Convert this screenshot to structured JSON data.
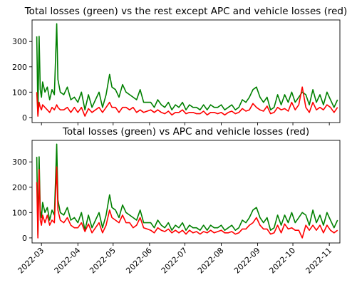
{
  "chart_data": [
    {
      "type": "line",
      "title": "Total losses (green) vs the rest except APC and vehicle losses (red)",
      "xlabel": "",
      "ylabel": "",
      "xlim": [
        "2022-02-21",
        "2022-11-10"
      ],
      "ylim": [
        -20,
        385
      ],
      "yticks": [
        0,
        100,
        200,
        300
      ],
      "grid": false,
      "series": [
        {
          "color": "#008000",
          "x": [
            "2022-02-25",
            "2022-02-26",
            "2022-02-27",
            "2022-02-28",
            "2022-03-01",
            "2022-03-02",
            "2022-03-04",
            "2022-03-06",
            "2022-03-08",
            "2022-03-10",
            "2022-03-12",
            "2022-03-14",
            "2022-03-15",
            "2022-03-17",
            "2022-03-20",
            "2022-03-23",
            "2022-03-26",
            "2022-03-29",
            "2022-04-01",
            "2022-04-04",
            "2022-04-07",
            "2022-04-10",
            "2022-04-13",
            "2022-04-16",
            "2022-04-19",
            "2022-04-22",
            "2022-04-25",
            "2022-04-28",
            "2022-04-30",
            "2022-05-03",
            "2022-05-06",
            "2022-05-09",
            "2022-05-12",
            "2022-05-15",
            "2022-05-18",
            "2022-05-21",
            "2022-05-24",
            "2022-05-27",
            "2022-05-30",
            "2022-06-02",
            "2022-06-05",
            "2022-06-08",
            "2022-06-11",
            "2022-06-14",
            "2022-06-17",
            "2022-06-20",
            "2022-06-23",
            "2022-06-26",
            "2022-06-29",
            "2022-07-02",
            "2022-07-05",
            "2022-07-08",
            "2022-07-11",
            "2022-07-14",
            "2022-07-17",
            "2022-07-20",
            "2022-07-23",
            "2022-07-26",
            "2022-07-29",
            "2022-08-01",
            "2022-08-04",
            "2022-08-07",
            "2022-08-10",
            "2022-08-13",
            "2022-08-16",
            "2022-08-19",
            "2022-08-22",
            "2022-08-25",
            "2022-08-28",
            "2022-08-31",
            "2022-09-03",
            "2022-09-06",
            "2022-09-09",
            "2022-09-12",
            "2022-09-15",
            "2022-09-18",
            "2022-09-21",
            "2022-09-24",
            "2022-09-27",
            "2022-09-30",
            "2022-10-03",
            "2022-10-06",
            "2022-10-09",
            "2022-10-12",
            "2022-10-15",
            "2022-10-18",
            "2022-10-21",
            "2022-10-24",
            "2022-10-27",
            "2022-10-30",
            "2022-11-02",
            "2022-11-05",
            "2022-11-08"
          ],
          "y": [
            320,
            10,
            320,
            110,
            80,
            140,
            100,
            120,
            70,
            110,
            90,
            370,
            150,
            100,
            90,
            120,
            70,
            80,
            60,
            100,
            30,
            90,
            40,
            70,
            100,
            40,
            90,
            170,
            120,
            110,
            80,
            130,
            100,
            90,
            80,
            70,
            110,
            60,
            60,
            60,
            40,
            70,
            50,
            40,
            60,
            30,
            50,
            40,
            60,
            30,
            50,
            40,
            40,
            30,
            50,
            30,
            50,
            40,
            40,
            50,
            30,
            40,
            50,
            30,
            40,
            70,
            60,
            80,
            110,
            120,
            80,
            60,
            80,
            30,
            40,
            90,
            50,
            90,
            60,
            100,
            60,
            80,
            100,
            90,
            50,
            110,
            60,
            90,
            50,
            100,
            70,
            40,
            70
          ]
        },
        {
          "color": "#ff0000",
          "x": [
            "2022-02-25",
            "2022-02-26",
            "2022-02-27",
            "2022-02-28",
            "2022-03-01",
            "2022-03-02",
            "2022-03-04",
            "2022-03-06",
            "2022-03-08",
            "2022-03-10",
            "2022-03-12",
            "2022-03-14",
            "2022-03-15",
            "2022-03-17",
            "2022-03-20",
            "2022-03-23",
            "2022-03-26",
            "2022-03-29",
            "2022-04-01",
            "2022-04-04",
            "2022-04-07",
            "2022-04-10",
            "2022-04-13",
            "2022-04-16",
            "2022-04-19",
            "2022-04-22",
            "2022-04-25",
            "2022-04-28",
            "2022-04-30",
            "2022-05-03",
            "2022-05-06",
            "2022-05-09",
            "2022-05-12",
            "2022-05-15",
            "2022-05-18",
            "2022-05-21",
            "2022-05-24",
            "2022-05-27",
            "2022-05-30",
            "2022-06-02",
            "2022-06-05",
            "2022-06-08",
            "2022-06-11",
            "2022-06-14",
            "2022-06-17",
            "2022-06-20",
            "2022-06-23",
            "2022-06-26",
            "2022-06-29",
            "2022-07-02",
            "2022-07-05",
            "2022-07-08",
            "2022-07-11",
            "2022-07-14",
            "2022-07-17",
            "2022-07-20",
            "2022-07-23",
            "2022-07-26",
            "2022-07-29",
            "2022-08-01",
            "2022-08-04",
            "2022-08-07",
            "2022-08-10",
            "2022-08-13",
            "2022-08-16",
            "2022-08-19",
            "2022-08-22",
            "2022-08-25",
            "2022-08-28",
            "2022-08-31",
            "2022-09-03",
            "2022-09-06",
            "2022-09-09",
            "2022-09-12",
            "2022-09-15",
            "2022-09-18",
            "2022-09-21",
            "2022-09-24",
            "2022-09-27",
            "2022-09-30",
            "2022-10-03",
            "2022-10-06",
            "2022-10-09",
            "2022-10-12",
            "2022-10-15",
            "2022-10-18",
            "2022-10-21",
            "2022-10-24",
            "2022-10-27",
            "2022-10-30",
            "2022-11-02",
            "2022-11-05",
            "2022-11-08"
          ],
          "y": [
            100,
            5,
            60,
            40,
            30,
            50,
            40,
            30,
            20,
            40,
            30,
            50,
            40,
            30,
            30,
            40,
            20,
            40,
            20,
            40,
            5,
            35,
            20,
            30,
            40,
            20,
            40,
            60,
            40,
            40,
            20,
            40,
            40,
            30,
            40,
            20,
            30,
            20,
            25,
            30,
            20,
            30,
            20,
            15,
            25,
            10,
            20,
            20,
            30,
            15,
            20,
            20,
            15,
            15,
            25,
            10,
            20,
            20,
            15,
            20,
            10,
            20,
            25,
            15,
            20,
            35,
            25,
            30,
            55,
            40,
            30,
            25,
            45,
            15,
            20,
            40,
            30,
            35,
            25,
            60,
            30,
            50,
            120,
            40,
            20,
            60,
            30,
            40,
            30,
            50,
            40,
            20,
            40
          ]
        }
      ]
    },
    {
      "type": "line",
      "title": "Total losses (green) vs APC and vehicle losses (red)",
      "xlabel": "",
      "ylabel": "",
      "xlim": [
        "2022-02-21",
        "2022-11-10"
      ],
      "ylim": [
        -20,
        385
      ],
      "yticks": [
        0,
        100,
        200,
        300
      ],
      "xticks": [
        "2022-03",
        "2022-04",
        "2022-05",
        "2022-06",
        "2022-07",
        "2022-08",
        "2022-09",
        "2022-10",
        "2022-11"
      ],
      "grid": false,
      "series": [
        {
          "color": "#008000",
          "x": [
            "2022-02-25",
            "2022-02-26",
            "2022-02-27",
            "2022-02-28",
            "2022-03-01",
            "2022-03-02",
            "2022-03-04",
            "2022-03-06",
            "2022-03-08",
            "2022-03-10",
            "2022-03-12",
            "2022-03-14",
            "2022-03-15",
            "2022-03-17",
            "2022-03-20",
            "2022-03-23",
            "2022-03-26",
            "2022-03-29",
            "2022-04-01",
            "2022-04-04",
            "2022-04-07",
            "2022-04-10",
            "2022-04-13",
            "2022-04-16",
            "2022-04-19",
            "2022-04-22",
            "2022-04-25",
            "2022-04-28",
            "2022-04-30",
            "2022-05-03",
            "2022-05-06",
            "2022-05-09",
            "2022-05-12",
            "2022-05-15",
            "2022-05-18",
            "2022-05-21",
            "2022-05-24",
            "2022-05-27",
            "2022-05-30",
            "2022-06-02",
            "2022-06-05",
            "2022-06-08",
            "2022-06-11",
            "2022-06-14",
            "2022-06-17",
            "2022-06-20",
            "2022-06-23",
            "2022-06-26",
            "2022-06-29",
            "2022-07-02",
            "2022-07-05",
            "2022-07-08",
            "2022-07-11",
            "2022-07-14",
            "2022-07-17",
            "2022-07-20",
            "2022-07-23",
            "2022-07-26",
            "2022-07-29",
            "2022-08-01",
            "2022-08-04",
            "2022-08-07",
            "2022-08-10",
            "2022-08-13",
            "2022-08-16",
            "2022-08-19",
            "2022-08-22",
            "2022-08-25",
            "2022-08-28",
            "2022-08-31",
            "2022-09-03",
            "2022-09-06",
            "2022-09-09",
            "2022-09-12",
            "2022-09-15",
            "2022-09-18",
            "2022-09-21",
            "2022-09-24",
            "2022-09-27",
            "2022-09-30",
            "2022-10-03",
            "2022-10-06",
            "2022-10-09",
            "2022-10-12",
            "2022-10-15",
            "2022-10-18",
            "2022-10-21",
            "2022-10-24",
            "2022-10-27",
            "2022-10-30",
            "2022-11-02",
            "2022-11-05",
            "2022-11-08"
          ],
          "y": [
            320,
            10,
            320,
            110,
            80,
            140,
            100,
            120,
            70,
            110,
            90,
            370,
            150,
            100,
            90,
            120,
            70,
            80,
            60,
            100,
            30,
            90,
            40,
            70,
            100,
            40,
            90,
            170,
            120,
            110,
            80,
            130,
            100,
            90,
            80,
            70,
            110,
            60,
            60,
            60,
            40,
            70,
            50,
            40,
            60,
            30,
            50,
            40,
            60,
            30,
            50,
            40,
            40,
            30,
            50,
            30,
            50,
            40,
            40,
            50,
            30,
            40,
            50,
            30,
            40,
            70,
            60,
            80,
            110,
            120,
            80,
            60,
            80,
            30,
            40,
            90,
            50,
            90,
            60,
            100,
            60,
            80,
            100,
            90,
            50,
            110,
            60,
            90,
            50,
            100,
            70,
            40,
            70
          ]
        },
        {
          "color": "#ff0000",
          "x": [
            "2022-02-25",
            "2022-02-26",
            "2022-02-27",
            "2022-02-28",
            "2022-03-01",
            "2022-03-02",
            "2022-03-04",
            "2022-03-06",
            "2022-03-08",
            "2022-03-10",
            "2022-03-12",
            "2022-03-14",
            "2022-03-15",
            "2022-03-17",
            "2022-03-20",
            "2022-03-23",
            "2022-03-26",
            "2022-03-29",
            "2022-04-01",
            "2022-04-04",
            "2022-04-07",
            "2022-04-10",
            "2022-04-13",
            "2022-04-16",
            "2022-04-19",
            "2022-04-22",
            "2022-04-25",
            "2022-04-28",
            "2022-04-30",
            "2022-05-03",
            "2022-05-06",
            "2022-05-09",
            "2022-05-12",
            "2022-05-15",
            "2022-05-18",
            "2022-05-21",
            "2022-05-24",
            "2022-05-27",
            "2022-05-30",
            "2022-06-02",
            "2022-06-05",
            "2022-06-08",
            "2022-06-11",
            "2022-06-14",
            "2022-06-17",
            "2022-06-20",
            "2022-06-23",
            "2022-06-26",
            "2022-06-29",
            "2022-07-02",
            "2022-07-05",
            "2022-07-08",
            "2022-07-11",
            "2022-07-14",
            "2022-07-17",
            "2022-07-20",
            "2022-07-23",
            "2022-07-26",
            "2022-07-29",
            "2022-08-01",
            "2022-08-04",
            "2022-08-07",
            "2022-08-10",
            "2022-08-13",
            "2022-08-16",
            "2022-08-19",
            "2022-08-22",
            "2022-08-25",
            "2022-08-28",
            "2022-08-31",
            "2022-09-03",
            "2022-09-06",
            "2022-09-09",
            "2022-09-12",
            "2022-09-15",
            "2022-09-18",
            "2022-09-21",
            "2022-09-24",
            "2022-09-27",
            "2022-09-30",
            "2022-10-03",
            "2022-10-06",
            "2022-10-09",
            "2022-10-12",
            "2022-10-15",
            "2022-10-18",
            "2022-10-21",
            "2022-10-24",
            "2022-10-27",
            "2022-10-30",
            "2022-11-02",
            "2022-11-05",
            "2022-11-08"
          ],
          "y": [
            220,
            0,
            270,
            70,
            50,
            90,
            60,
            90,
            50,
            70,
            60,
            280,
            110,
            70,
            60,
            80,
            50,
            40,
            40,
            60,
            25,
            55,
            20,
            40,
            60,
            20,
            50,
            110,
            80,
            70,
            60,
            90,
            60,
            60,
            40,
            50,
            80,
            40,
            35,
            30,
            20,
            40,
            30,
            25,
            35,
            20,
            30,
            20,
            30,
            15,
            30,
            20,
            25,
            15,
            25,
            20,
            30,
            20,
            25,
            30,
            20,
            20,
            25,
            15,
            20,
            35,
            35,
            50,
            60,
            80,
            50,
            35,
            35,
            15,
            20,
            50,
            20,
            55,
            35,
            40,
            30,
            30,
            0,
            50,
            30,
            50,
            30,
            50,
            20,
            50,
            30,
            20,
            30
          ]
        }
      ]
    }
  ]
}
